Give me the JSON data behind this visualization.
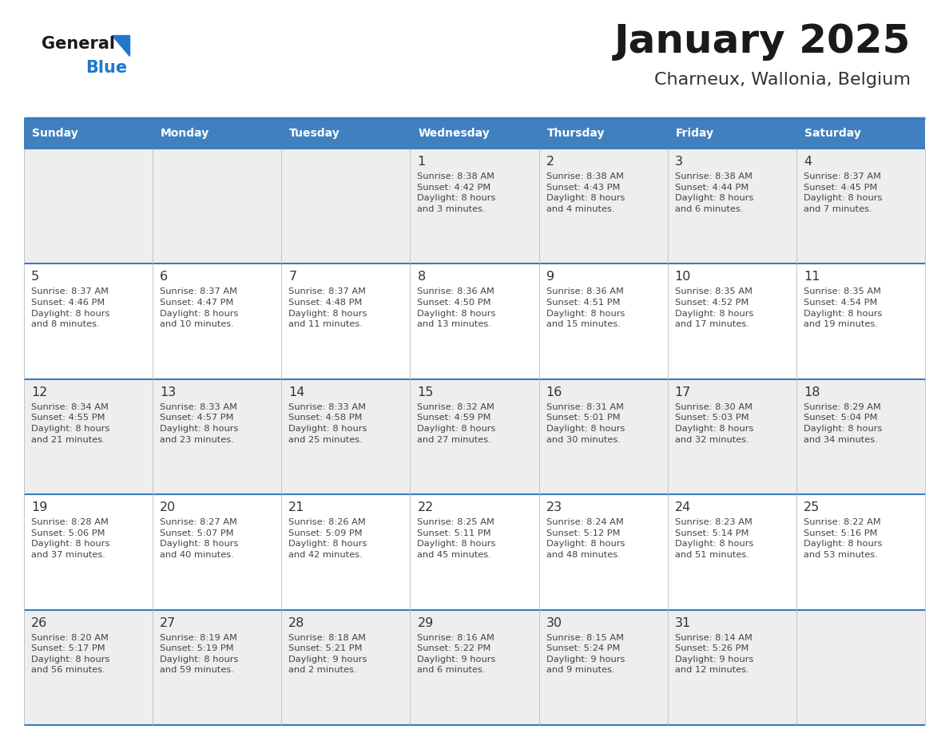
{
  "title": "January 2025",
  "subtitle": "Charneux, Wallonia, Belgium",
  "header_bg": "#4080bf",
  "header_text": "#ffffff",
  "day_headers": [
    "Sunday",
    "Monday",
    "Tuesday",
    "Wednesday",
    "Thursday",
    "Friday",
    "Saturday"
  ],
  "row_bg_even": "#eeeeee",
  "row_bg_odd": "#ffffff",
  "text_color": "#333333",
  "border_color": "#3a7bbf",
  "cell_text_color": "#444444",
  "day_num_color": "#333333",
  "weeks": [
    [
      {
        "day": null,
        "text": ""
      },
      {
        "day": null,
        "text": ""
      },
      {
        "day": null,
        "text": ""
      },
      {
        "day": 1,
        "text": "Sunrise: 8:38 AM\nSunset: 4:42 PM\nDaylight: 8 hours\nand 3 minutes."
      },
      {
        "day": 2,
        "text": "Sunrise: 8:38 AM\nSunset: 4:43 PM\nDaylight: 8 hours\nand 4 minutes."
      },
      {
        "day": 3,
        "text": "Sunrise: 8:38 AM\nSunset: 4:44 PM\nDaylight: 8 hours\nand 6 minutes."
      },
      {
        "day": 4,
        "text": "Sunrise: 8:37 AM\nSunset: 4:45 PM\nDaylight: 8 hours\nand 7 minutes."
      }
    ],
    [
      {
        "day": 5,
        "text": "Sunrise: 8:37 AM\nSunset: 4:46 PM\nDaylight: 8 hours\nand 8 minutes."
      },
      {
        "day": 6,
        "text": "Sunrise: 8:37 AM\nSunset: 4:47 PM\nDaylight: 8 hours\nand 10 minutes."
      },
      {
        "day": 7,
        "text": "Sunrise: 8:37 AM\nSunset: 4:48 PM\nDaylight: 8 hours\nand 11 minutes."
      },
      {
        "day": 8,
        "text": "Sunrise: 8:36 AM\nSunset: 4:50 PM\nDaylight: 8 hours\nand 13 minutes."
      },
      {
        "day": 9,
        "text": "Sunrise: 8:36 AM\nSunset: 4:51 PM\nDaylight: 8 hours\nand 15 minutes."
      },
      {
        "day": 10,
        "text": "Sunrise: 8:35 AM\nSunset: 4:52 PM\nDaylight: 8 hours\nand 17 minutes."
      },
      {
        "day": 11,
        "text": "Sunrise: 8:35 AM\nSunset: 4:54 PM\nDaylight: 8 hours\nand 19 minutes."
      }
    ],
    [
      {
        "day": 12,
        "text": "Sunrise: 8:34 AM\nSunset: 4:55 PM\nDaylight: 8 hours\nand 21 minutes."
      },
      {
        "day": 13,
        "text": "Sunrise: 8:33 AM\nSunset: 4:57 PM\nDaylight: 8 hours\nand 23 minutes."
      },
      {
        "day": 14,
        "text": "Sunrise: 8:33 AM\nSunset: 4:58 PM\nDaylight: 8 hours\nand 25 minutes."
      },
      {
        "day": 15,
        "text": "Sunrise: 8:32 AM\nSunset: 4:59 PM\nDaylight: 8 hours\nand 27 minutes."
      },
      {
        "day": 16,
        "text": "Sunrise: 8:31 AM\nSunset: 5:01 PM\nDaylight: 8 hours\nand 30 minutes."
      },
      {
        "day": 17,
        "text": "Sunrise: 8:30 AM\nSunset: 5:03 PM\nDaylight: 8 hours\nand 32 minutes."
      },
      {
        "day": 18,
        "text": "Sunrise: 8:29 AM\nSunset: 5:04 PM\nDaylight: 8 hours\nand 34 minutes."
      }
    ],
    [
      {
        "day": 19,
        "text": "Sunrise: 8:28 AM\nSunset: 5:06 PM\nDaylight: 8 hours\nand 37 minutes."
      },
      {
        "day": 20,
        "text": "Sunrise: 8:27 AM\nSunset: 5:07 PM\nDaylight: 8 hours\nand 40 minutes."
      },
      {
        "day": 21,
        "text": "Sunrise: 8:26 AM\nSunset: 5:09 PM\nDaylight: 8 hours\nand 42 minutes."
      },
      {
        "day": 22,
        "text": "Sunrise: 8:25 AM\nSunset: 5:11 PM\nDaylight: 8 hours\nand 45 minutes."
      },
      {
        "day": 23,
        "text": "Sunrise: 8:24 AM\nSunset: 5:12 PM\nDaylight: 8 hours\nand 48 minutes."
      },
      {
        "day": 24,
        "text": "Sunrise: 8:23 AM\nSunset: 5:14 PM\nDaylight: 8 hours\nand 51 minutes."
      },
      {
        "day": 25,
        "text": "Sunrise: 8:22 AM\nSunset: 5:16 PM\nDaylight: 8 hours\nand 53 minutes."
      }
    ],
    [
      {
        "day": 26,
        "text": "Sunrise: 8:20 AM\nSunset: 5:17 PM\nDaylight: 8 hours\nand 56 minutes."
      },
      {
        "day": 27,
        "text": "Sunrise: 8:19 AM\nSunset: 5:19 PM\nDaylight: 8 hours\nand 59 minutes."
      },
      {
        "day": 28,
        "text": "Sunrise: 8:18 AM\nSunset: 5:21 PM\nDaylight: 9 hours\nand 2 minutes."
      },
      {
        "day": 29,
        "text": "Sunrise: 8:16 AM\nSunset: 5:22 PM\nDaylight: 9 hours\nand 6 minutes."
      },
      {
        "day": 30,
        "text": "Sunrise: 8:15 AM\nSunset: 5:24 PM\nDaylight: 9 hours\nand 9 minutes."
      },
      {
        "day": 31,
        "text": "Sunrise: 8:14 AM\nSunset: 5:26 PM\nDaylight: 9 hours\nand 12 minutes."
      },
      {
        "day": null,
        "text": ""
      }
    ]
  ],
  "logo_general_color": "#1a1a1a",
  "logo_blue_color": "#2277cc",
  "logo_triangle_color": "#2277cc",
  "title_color": "#1a1a1a",
  "subtitle_color": "#333333",
  "fig_width": 11.88,
  "fig_height": 9.18,
  "dpi": 100
}
